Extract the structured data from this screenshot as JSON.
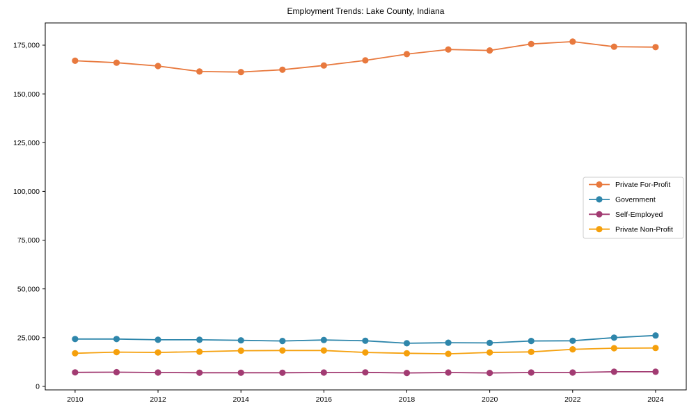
{
  "chart_data": {
    "type": "line",
    "title": "Employment Trends: Lake County, Indiana",
    "xlabel": "",
    "ylabel": "",
    "grid": false,
    "legend_position": "center right",
    "x": [
      2010,
      2011,
      2012,
      2013,
      2014,
      2015,
      2016,
      2017,
      2018,
      2019,
      2020,
      2021,
      2022,
      2023,
      2024
    ],
    "xticks": [
      2010,
      2012,
      2014,
      2016,
      2018,
      2020,
      2022,
      2024
    ],
    "xtick_labels": [
      "2010",
      "2012",
      "2014",
      "2016",
      "2018",
      "2020",
      "2022",
      "2024"
    ],
    "yticks": [
      0,
      25000,
      50000,
      75000,
      100000,
      125000,
      150000,
      175000
    ],
    "ytick_labels": [
      "0",
      "25,000",
      "50,000",
      "75,000",
      "100,000",
      "125,000",
      "150,000",
      "175,000"
    ],
    "xlim": [
      2009.28,
      2024.74
    ],
    "ylim": [
      -1800,
      186400
    ],
    "series": [
      {
        "name": "Private For-Profit",
        "color": "#E8793E",
        "values": [
          167000,
          166000,
          164300,
          161500,
          161200,
          162400,
          164600,
          167200,
          170400,
          172800,
          172300,
          175600,
          176800,
          174200,
          174000
        ]
      },
      {
        "name": "Government",
        "color": "#2E86AB",
        "values": [
          24300,
          24300,
          23900,
          23900,
          23600,
          23300,
          23800,
          23400,
          22100,
          22400,
          22300,
          23300,
          23400,
          25000,
          26100
        ]
      },
      {
        "name": "Self-Employed",
        "color": "#A23B72",
        "values": [
          7200,
          7300,
          7100,
          7000,
          7000,
          7000,
          7100,
          7200,
          6900,
          7100,
          6900,
          7100,
          7100,
          7500,
          7500
        ]
      },
      {
        "name": "Private Non-Profit",
        "color": "#F5A00C",
        "values": [
          17000,
          17600,
          17400,
          17800,
          18300,
          18400,
          18400,
          17400,
          17000,
          16700,
          17400,
          17700,
          19000,
          19600,
          19700
        ]
      }
    ]
  }
}
